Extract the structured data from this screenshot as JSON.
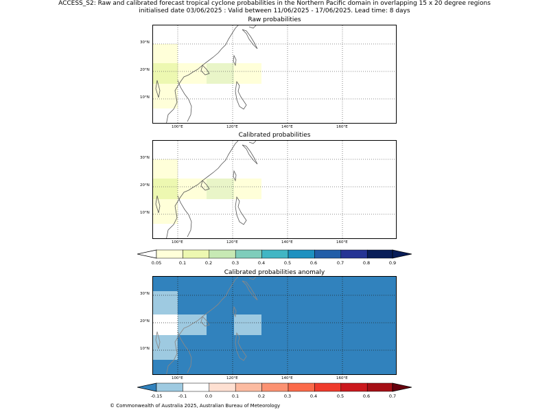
{
  "header": {
    "title_line1": "ACCESS_S2: Raw and calibrated forecast tropical cyclone probabilities in the Northern Pacific domain in overlapping 15 x 20 degree regions",
    "title_line2": "initialised date 03/06/2025 :  Valid between 11/06/2025 - 17/06/2025. Lead time: 8 days"
  },
  "panels": {
    "raw": {
      "title": "Raw probabilities"
    },
    "calibrated": {
      "title": "Calibrated probabilities"
    },
    "anomaly": {
      "title": "Calibrated probabilities anomaly"
    }
  },
  "axes": {
    "lon_labels": [
      "100°E",
      "120°E",
      "140°E",
      "160°E"
    ],
    "lat_labels": [
      "30°N",
      "20°N",
      "10°N"
    ]
  },
  "colorbar_prob": {
    "labels": [
      "0.05",
      "0.1",
      "0.2",
      "0.3",
      "0.4",
      "0.5",
      "0.6",
      "0.7",
      "0.8",
      "0.9"
    ],
    "colors": [
      "#ffffff",
      "#ffffd9",
      "#edf8b1",
      "#c7e9b4",
      "#7fcdbb",
      "#41b6c4",
      "#1d91c0",
      "#225ea8",
      "#253494",
      "#081d58"
    ]
  },
  "colorbar_anom": {
    "labels": [
      "-0.15",
      "-0.1",
      "0.0",
      "0.1",
      "0.2",
      "0.3",
      "0.4",
      "0.5",
      "0.6",
      "0.7"
    ],
    "colors": [
      "#3182bd",
      "#9ecae1",
      "#ffffff",
      "#fee0d2",
      "#fcbba1",
      "#fc9272",
      "#fb6a4a",
      "#ef3b2c",
      "#cb181d",
      "#a50f15",
      "#67000d"
    ]
  },
  "footer": {
    "copyright": "© Commonwealth of Australia 2025, Australian Bureau of Meteorology"
  }
}
